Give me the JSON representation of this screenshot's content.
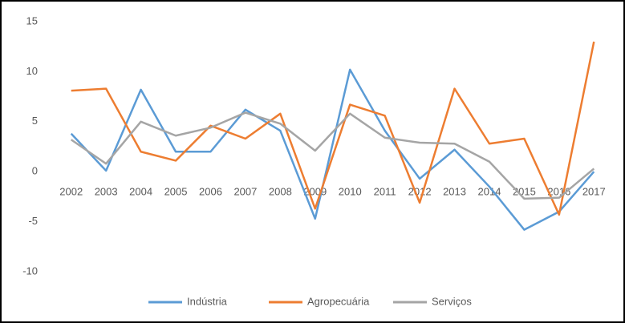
{
  "chart_data": {
    "type": "line",
    "categories": [
      "2002",
      "2003",
      "2004",
      "2005",
      "2006",
      "2007",
      "2008",
      "2009",
      "2010",
      "2011",
      "2012",
      "2013",
      "2014",
      "2015",
      "2016",
      "2017"
    ],
    "series": [
      {
        "name": "Indústria",
        "color": "#5b9bd5",
        "values": [
          3.8,
          0.1,
          8.2,
          2.0,
          2.0,
          6.2,
          4.1,
          -4.7,
          10.2,
          4.1,
          -0.7,
          2.2,
          -1.5,
          -5.8,
          -4.0,
          0.0
        ]
      },
      {
        "name": "Agropecuária",
        "color": "#ed7d31",
        "values": [
          8.1,
          8.3,
          2.0,
          1.1,
          4.6,
          3.3,
          5.8,
          -3.7,
          6.7,
          5.6,
          -3.1,
          8.3,
          2.8,
          3.3,
          -4.3,
          13.0
        ]
      },
      {
        "name": "Serviços",
        "color": "#a5a5a5",
        "values": [
          3.2,
          0.8,
          5.0,
          3.6,
          4.4,
          5.9,
          4.8,
          2.1,
          5.8,
          3.4,
          2.9,
          2.8,
          1.0,
          -2.7,
          -2.6,
          0.3
        ]
      }
    ],
    "ylim": [
      -10,
      15
    ],
    "yticks": [
      -10,
      -5,
      0,
      5,
      10,
      15
    ],
    "grid": false,
    "legend": "bottom"
  }
}
